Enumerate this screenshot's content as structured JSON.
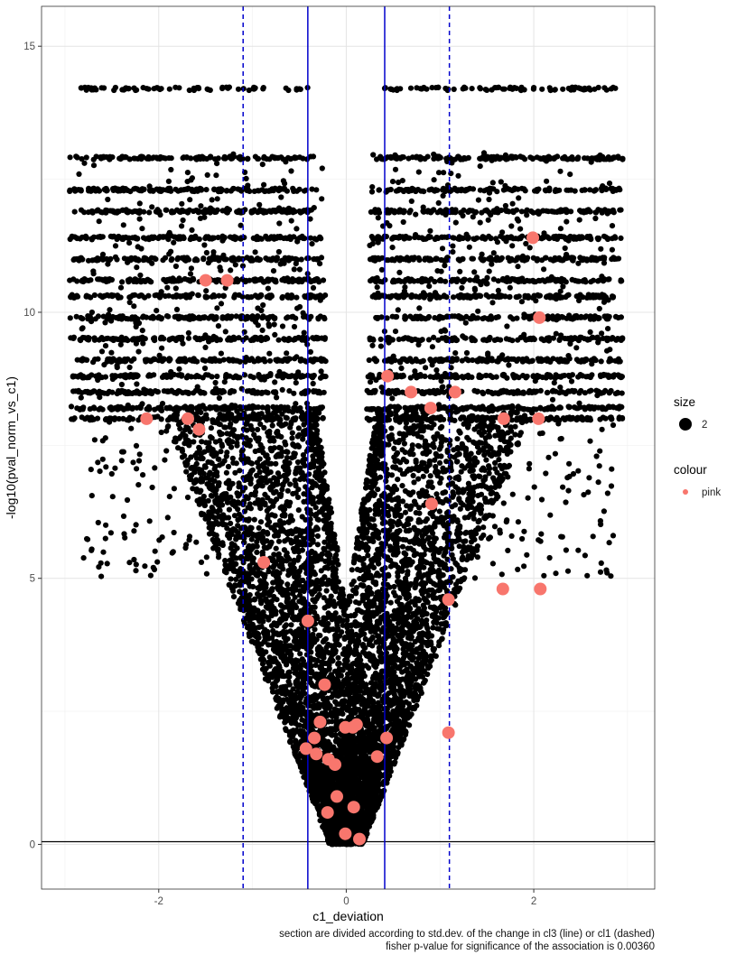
{
  "chart_data": {
    "type": "scatter",
    "xlabel": "c1_deviation",
    "ylabel": "-log10(pval_norm_vs_c1)",
    "xlim": [
      -3.25,
      3.29
    ],
    "ylim": [
      -0.84,
      15.75
    ],
    "x_ticks": [
      -2,
      0,
      2
    ],
    "x_tick_labels": [
      "-2",
      "0",
      "2"
    ],
    "y_ticks": [
      0,
      5,
      10,
      15
    ],
    "y_tick_labels": [
      "0",
      "5",
      "10",
      "15"
    ],
    "grid": true,
    "background_series": {
      "color": "#000000",
      "description_levels": [
        14.2,
        12.9,
        12.3,
        11.9,
        11.4,
        11.0,
        10.6,
        10.3,
        9.9,
        9.5,
        9.1,
        8.8,
        8.5,
        8.2,
        8.0
      ]
    },
    "vlines_solid": [
      -0.41,
      0.41
    ],
    "vlines_dashed": [
      -1.1,
      1.1
    ],
    "hline": 0.05,
    "line_color": "#0000cc",
    "highlight_series": {
      "name": "pink",
      "color": "#f8766d",
      "points": [
        [
          -1.5,
          10.6
        ],
        [
          -1.27,
          10.6
        ],
        [
          -2.13,
          8.0
        ],
        [
          -1.69,
          8.0
        ],
        [
          -1.57,
          7.8
        ],
        [
          -0.88,
          5.3
        ],
        [
          -0.41,
          4.2
        ],
        [
          -0.23,
          3.0
        ],
        [
          -0.28,
          2.3
        ],
        [
          -0.34,
          2.0
        ],
        [
          -0.43,
          1.8
        ],
        [
          -0.32,
          1.7
        ],
        [
          -0.19,
          1.6
        ],
        [
          -0.12,
          1.5
        ],
        [
          -0.1,
          0.9
        ],
        [
          -0.2,
          0.6
        ],
        [
          -0.01,
          2.2
        ],
        [
          0.07,
          2.2
        ],
        [
          0.11,
          2.25
        ],
        [
          0.43,
          2.0
        ],
        [
          0.33,
          1.65
        ],
        [
          0.08,
          0.7
        ],
        [
          -0.01,
          0.2
        ],
        [
          0.14,
          0.1
        ],
        [
          0.44,
          8.8
        ],
        [
          0.69,
          8.5
        ],
        [
          1.16,
          8.5
        ],
        [
          0.9,
          8.2
        ],
        [
          1.68,
          8.0
        ],
        [
          2.05,
          8.0
        ],
        [
          1.99,
          11.4
        ],
        [
          2.06,
          9.9
        ],
        [
          0.91,
          6.4
        ],
        [
          1.09,
          4.6
        ],
        [
          1.67,
          4.8
        ],
        [
          2.07,
          4.8
        ],
        [
          1.09,
          2.1
        ]
      ]
    },
    "legend": {
      "placement": "right",
      "size_title": "size",
      "size_label": "2",
      "colour_title": "colour",
      "colour_label": "pink"
    },
    "caption_lines": [
      "section are divided according to std.dev. of the change in cl3 (line) or cl1 (dashed)",
      "fisher p-value for significance of the association is 0.00360"
    ]
  }
}
